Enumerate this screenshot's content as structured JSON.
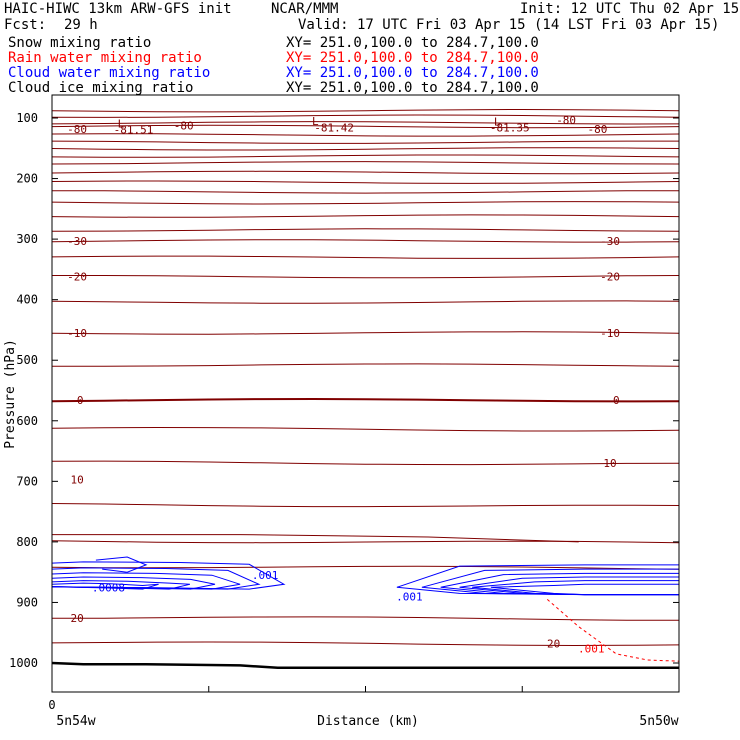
{
  "header": {
    "title_left": "HAIC-HIWC 13km ARW-GFS init",
    "title_center": "NCAR/MMM",
    "init": "Init: 12 UTC Thu 02 Apr 15",
    "fcst_label": "Fcst:",
    "fcst_value": "29 h",
    "valid": "Valid: 17 UTC Fri 03 Apr 15 (14 LST Fri 03 Apr 15)"
  },
  "fields": [
    {
      "name": "Snow mixing ratio",
      "xy": "XY= 251.0,100.0 to 284.7,100.0",
      "color": "#000000"
    },
    {
      "name": "Rain water mixing ratio",
      "xy": "XY= 251.0,100.0 to 284.7,100.0",
      "color": "#ff0000"
    },
    {
      "name": "Cloud water mixing ratio",
      "xy": "XY= 251.0,100.0 to 284.7,100.0",
      "color": "#0000ff"
    },
    {
      "name": "Cloud ice mixing ratio",
      "xy": "XY= 251.0,100.0 to 284.7,100.0",
      "color": "#000000"
    }
  ],
  "chart_data": {
    "type": "line",
    "title": "",
    "xlabel": "Distance (km)",
    "ylabel": "Pressure (hPa)",
    "x_origin_label": "0",
    "x_endpoints": [
      "5n54w",
      "5n50w"
    ],
    "ylim": [
      1050,
      80
    ],
    "yticks": [
      100,
      200,
      300,
      400,
      500,
      600,
      700,
      800,
      900,
      1000
    ],
    "colors": {
      "temperature": "#800000",
      "cloud_water": "#0000ff",
      "rain": "#ff0000",
      "ground": "#000000"
    },
    "temperature_labels": [
      {
        "text": "-80",
        "x": 0.04,
        "p": 118
      },
      {
        "text": "-80",
        "x": 0.21,
        "p": 112
      },
      {
        "text": "-80",
        "x": 0.82,
        "p": 103
      },
      {
        "text": "-80",
        "x": 0.87,
        "p": 118
      },
      {
        "text": "-81.51",
        "x": 0.13,
        "p": 119
      },
      {
        "text": "-81.42",
        "x": 0.45,
        "p": 116
      },
      {
        "text": "-81.35",
        "x": 0.73,
        "p": 116
      },
      {
        "text": "L",
        "x": 0.11,
        "p": 109
      },
      {
        "text": "L",
        "x": 0.42,
        "p": 105
      },
      {
        "text": "L",
        "x": 0.71,
        "p": 106
      },
      {
        "text": "-30",
        "x": 0.04,
        "p": 303
      },
      {
        "text": "-30",
        "x": 0.89,
        "p": 303
      },
      {
        "text": "-20",
        "x": 0.04,
        "p": 362
      },
      {
        "text": "-20",
        "x": 0.89,
        "p": 362
      },
      {
        "text": "-10",
        "x": 0.04,
        "p": 455
      },
      {
        "text": "-10",
        "x": 0.89,
        "p": 455
      },
      {
        "text": "0",
        "x": 0.045,
        "p": 566
      },
      {
        "text": "0",
        "x": 0.9,
        "p": 566
      },
      {
        "text": "10",
        "x": 0.89,
        "p": 670
      },
      {
        "text": "10",
        "x": 0.04,
        "p": 697
      },
      {
        "text": "20",
        "x": 0.04,
        "p": 926
      },
      {
        "text": "20",
        "x": 0.8,
        "p": 968
      }
    ],
    "cloud_water_labels": [
      {
        "text": ".001",
        "x": 0.34,
        "p": 855
      },
      {
        "text": ".001",
        "x": 0.57,
        "p": 890
      },
      {
        "text": ".0008",
        "x": 0.09,
        "p": 875
      }
    ],
    "rain_labels": [
      {
        "text": ".001",
        "x": 0.86,
        "p": 976
      }
    ]
  }
}
